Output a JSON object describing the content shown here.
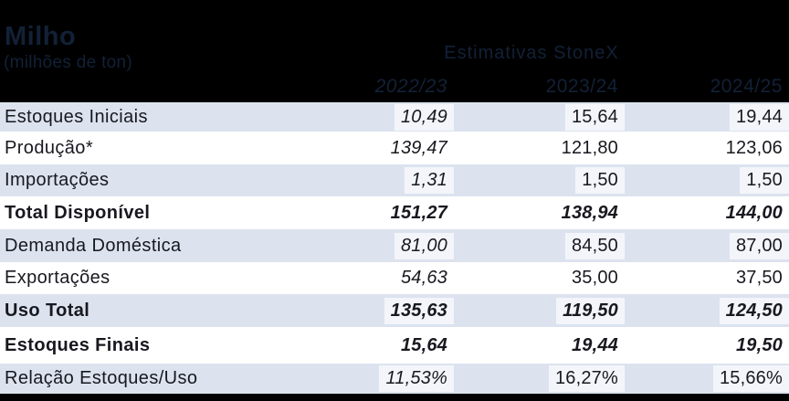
{
  "chart_data": {
    "type": "table",
    "title": "Milho",
    "subtitle": "(milhões de ton)",
    "group_header": "Estimativas StoneX",
    "columns": [
      "2022/23",
      "2023/24",
      "2024/25"
    ],
    "rows": [
      {
        "label": "Estoques Iniciais",
        "values": [
          "10,49",
          "15,64",
          "19,44"
        ],
        "bold": false
      },
      {
        "label": "Produção*",
        "values": [
          "139,47",
          "121,80",
          "123,06"
        ],
        "bold": false
      },
      {
        "label": "Importações",
        "values": [
          "1,31",
          "1,50",
          "1,50"
        ],
        "bold": false
      },
      {
        "label": "Total Disponível",
        "values": [
          "151,27",
          "138,94",
          "144,00"
        ],
        "bold": true
      },
      {
        "label": "Demanda Doméstica",
        "values": [
          "81,00",
          "84,50",
          "87,00"
        ],
        "bold": false
      },
      {
        "label": "Exportações",
        "values": [
          "54,63",
          "35,00",
          "37,50"
        ],
        "bold": false
      },
      {
        "label": "Uso Total",
        "values": [
          "135,63",
          "119,50",
          "124,50"
        ],
        "bold": true
      },
      {
        "label": "Estoques Finais",
        "values": [
          "15,64",
          "19,44",
          "19,50"
        ],
        "bold": true
      },
      {
        "label": "Relação Estoques/Uso",
        "values": [
          "11,53%",
          "16,27%",
          "15,66%"
        ],
        "bold": false
      }
    ]
  },
  "colors": {
    "header_bg": "#000000",
    "header_text": "#122137",
    "row_shade": "#dce3ef",
    "row_white": "#ffffff",
    "value_highlight": "#f3f5fa",
    "body_text": "#18181f"
  }
}
